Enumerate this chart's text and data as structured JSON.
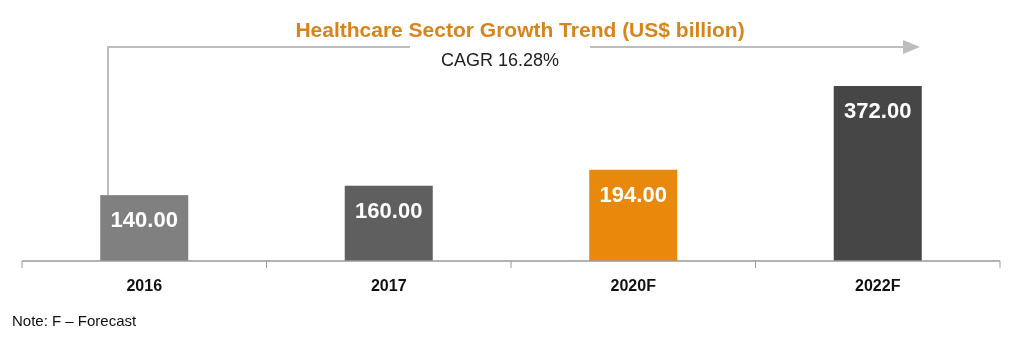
{
  "chart_data": {
    "type": "bar",
    "title": "Healthcare Sector Growth Trend (US$ billion)",
    "categories": [
      "2016",
      "2017",
      "2020F",
      "2022F"
    ],
    "values": [
      140.0,
      160.0,
      194.0,
      372.0
    ],
    "colors": [
      "#808080",
      "#5f5f5f",
      "#e8890c",
      "#464646"
    ],
    "data_labels": true,
    "value_labels": [
      "140.00",
      "160.00",
      "194.00",
      "372.00"
    ],
    "annotations": [
      "CAGR 16.28%",
      "Note: F – Forecast"
    ]
  }
}
